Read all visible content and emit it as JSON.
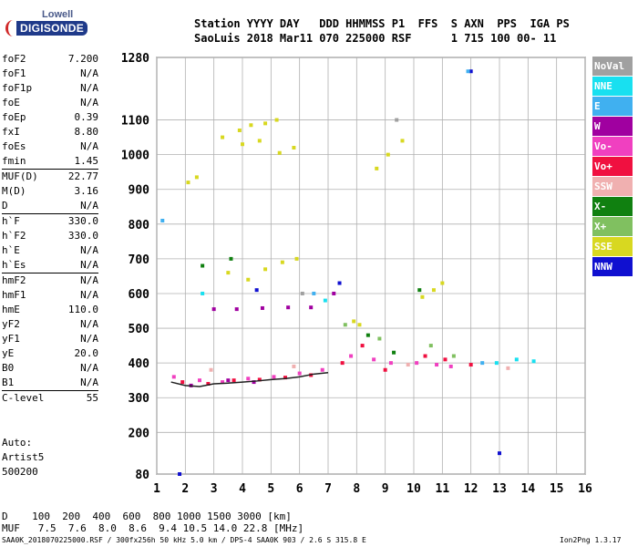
{
  "logo": {
    "line1": "Lowell",
    "line2": "DIGISONDE"
  },
  "header": {
    "line1": "Station YYYY DAY   DDD HHMMSS P1  FFS  S AXN  PPS  IGA PS",
    "line2": "SaoLuis 2018 Mar11 070 225000 RSF      1 715 100 00- 11"
  },
  "parameters": [
    {
      "name": "foF2",
      "value": "7.200"
    },
    {
      "name": "foF1",
      "value": "N/A"
    },
    {
      "name": "foF1p",
      "value": "N/A"
    },
    {
      "name": "foE",
      "value": "N/A"
    },
    {
      "name": "foEp",
      "value": "0.39"
    },
    {
      "name": "fxI",
      "value": "8.80"
    },
    {
      "name": "foEs",
      "value": "N/A"
    },
    {
      "name": "fmin",
      "value": "1.45"
    },
    {
      "name": "MUF(D)",
      "value": "22.77",
      "sep": true
    },
    {
      "name": "M(D)",
      "value": "3.16"
    },
    {
      "name": "D",
      "value": "N/A"
    },
    {
      "name": "h`F",
      "value": "330.0",
      "sep": true
    },
    {
      "name": "h`F2",
      "value": "330.0"
    },
    {
      "name": "h`E",
      "value": "N/A"
    },
    {
      "name": "h`Es",
      "value": "N/A"
    },
    {
      "name": "hmF2",
      "value": "N/A",
      "sep": true
    },
    {
      "name": "hmF1",
      "value": "N/A"
    },
    {
      "name": "hmE",
      "value": "110.0"
    },
    {
      "name": "yF2",
      "value": "N/A"
    },
    {
      "name": "yF1",
      "value": "N/A"
    },
    {
      "name": "yE",
      "value": "20.0"
    },
    {
      "name": "B0",
      "value": "N/A"
    },
    {
      "name": "B1",
      "value": "N/A"
    },
    {
      "name": "C-level",
      "value": "55",
      "sep": true
    }
  ],
  "autoscale": {
    "line1": "Auto:",
    "line2": "Artist5",
    "line3": "500200"
  },
  "legend": [
    {
      "label": "NoVal",
      "color": "#a0a0a0"
    },
    {
      "label": "NNE",
      "color": "#18e0f0"
    },
    {
      "label": "E",
      "color": "#40b0f0"
    },
    {
      "label": "W",
      "color": "#a000a0"
    },
    {
      "label": "Vo-",
      "color": "#f040c0"
    },
    {
      "label": "Vo+",
      "color": "#f01040"
    },
    {
      "label": "SSW",
      "color": "#f0b0b0"
    },
    {
      "label": "X-",
      "color": "#108010"
    },
    {
      "label": "X+",
      "color": "#80c060"
    },
    {
      "label": "SSE",
      "color": "#d8d820"
    },
    {
      "label": "NNW",
      "color": "#1010d0"
    }
  ],
  "footer": {
    "d_row": "D    100  200  400  600  800 1000 1500 3000 [km]",
    "muf_row": "MUF   7.5  7.6  8.0  8.6  9.4 10.5 14.0 22.8 [MHz]",
    "file_info": "SAA0K_2018070225000.RSF / 300fx256h 50 kHz 5.0 km / DPS-4 SAA0K 903 / 2.6 S 315.8 E",
    "version": "Ion2Png 1.3.17"
  },
  "chart_data": {
    "type": "scatter",
    "title": "",
    "xlabel": "",
    "ylabel": "",
    "xlim": [
      1,
      16
    ],
    "ylim": [
      80,
      1280
    ],
    "x_ticks": [
      1,
      2,
      3,
      4,
      5,
      6,
      7,
      8,
      9,
      10,
      11,
      12,
      13,
      14,
      15,
      16
    ],
    "y_ticks": [
      80,
      200,
      300,
      400,
      500,
      600,
      700,
      800,
      900,
      1000,
      1100,
      1280
    ],
    "grid": true,
    "legend_position": "right",
    "series": [
      {
        "name": "Vo-",
        "color": "#f040c0",
        "points": [
          [
            1.6,
            360
          ],
          [
            2.5,
            350
          ],
          [
            3.3,
            345
          ],
          [
            4.2,
            355
          ],
          [
            5.1,
            360
          ],
          [
            6.0,
            370
          ],
          [
            6.8,
            380
          ],
          [
            7.8,
            420
          ],
          [
            8.6,
            410
          ],
          [
            9.2,
            400
          ],
          [
            10.1,
            400
          ],
          [
            10.8,
            395
          ],
          [
            11.3,
            390
          ]
        ]
      },
      {
        "name": "Vo+",
        "color": "#f01040",
        "points": [
          [
            1.9,
            345
          ],
          [
            2.8,
            340
          ],
          [
            3.7,
            350
          ],
          [
            4.6,
            352
          ],
          [
            5.5,
            358
          ],
          [
            6.4,
            365
          ],
          [
            7.5,
            400
          ],
          [
            8.2,
            450
          ],
          [
            9.0,
            380
          ],
          [
            10.4,
            420
          ],
          [
            11.1,
            410
          ],
          [
            12.0,
            395
          ]
        ]
      },
      {
        "name": "W",
        "color": "#a000a0",
        "points": [
          [
            2.2,
            335
          ],
          [
            3.0,
            555
          ],
          [
            3.8,
            555
          ],
          [
            4.7,
            558
          ],
          [
            5.6,
            560
          ],
          [
            6.4,
            560
          ],
          [
            3.5,
            350
          ],
          [
            4.4,
            345
          ],
          [
            7.2,
            600
          ]
        ]
      },
      {
        "name": "SSE",
        "color": "#d8d820",
        "points": [
          [
            2.1,
            920
          ],
          [
            2.4,
            935
          ],
          [
            3.3,
            1050
          ],
          [
            3.9,
            1070
          ],
          [
            4.3,
            1085
          ],
          [
            4.8,
            1090
          ],
          [
            5.2,
            1100
          ],
          [
            4.0,
            1030
          ],
          [
            4.6,
            1040
          ],
          [
            5.3,
            1005
          ],
          [
            5.8,
            1020
          ],
          [
            8.7,
            960
          ],
          [
            9.1,
            1000
          ],
          [
            9.6,
            1040
          ],
          [
            3.5,
            660
          ],
          [
            4.2,
            640
          ],
          [
            4.8,
            670
          ],
          [
            5.4,
            690
          ],
          [
            5.9,
            700
          ],
          [
            10.3,
            590
          ],
          [
            10.7,
            610
          ],
          [
            11.0,
            630
          ],
          [
            7.9,
            520
          ],
          [
            8.1,
            510
          ]
        ]
      },
      {
        "name": "NNE",
        "color": "#18e0f0",
        "points": [
          [
            12.9,
            400
          ],
          [
            13.6,
            410
          ],
          [
            14.2,
            405
          ],
          [
            2.6,
            600
          ],
          [
            6.9,
            580
          ]
        ]
      },
      {
        "name": "X-",
        "color": "#108010",
        "points": [
          [
            2.6,
            680
          ],
          [
            3.6,
            700
          ],
          [
            10.2,
            610
          ],
          [
            8.4,
            480
          ],
          [
            9.3,
            430
          ]
        ]
      },
      {
        "name": "X+",
        "color": "#80c060",
        "points": [
          [
            7.6,
            510
          ],
          [
            8.8,
            470
          ],
          [
            10.6,
            450
          ],
          [
            11.4,
            420
          ]
        ]
      },
      {
        "name": "NNW",
        "color": "#1010d0",
        "points": [
          [
            1.8,
            80
          ],
          [
            7.4,
            630
          ],
          [
            13.0,
            140
          ],
          [
            12.0,
            1240
          ],
          [
            4.5,
            610
          ]
        ]
      },
      {
        "name": "E",
        "color": "#40b0f0",
        "points": [
          [
            11.9,
            1240
          ],
          [
            1.2,
            810
          ],
          [
            6.5,
            600
          ],
          [
            12.4,
            400
          ]
        ]
      },
      {
        "name": "SSW",
        "color": "#f0b0b0",
        "points": [
          [
            2.9,
            380
          ],
          [
            5.8,
            390
          ],
          [
            9.8,
            395
          ],
          [
            13.3,
            385
          ]
        ]
      },
      {
        "name": "NoVal",
        "color": "#a0a0a0",
        "points": [
          [
            6.1,
            600
          ],
          [
            9.4,
            1100
          ]
        ]
      }
    ],
    "trace": {
      "color": "#202020",
      "points": [
        [
          1.5,
          345
        ],
        [
          2.0,
          335
        ],
        [
          2.5,
          332
        ],
        [
          3.0,
          340
        ],
        [
          3.5,
          342
        ],
        [
          4.0,
          345
        ],
        [
          4.5,
          348
        ],
        [
          5.0,
          352
        ],
        [
          5.5,
          355
        ],
        [
          6.0,
          360
        ],
        [
          6.5,
          368
        ],
        [
          7.0,
          372
        ]
      ]
    }
  }
}
